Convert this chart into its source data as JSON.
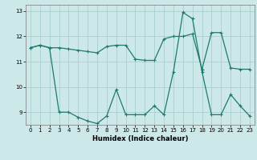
{
  "title": "",
  "xlabel": "Humidex (Indice chaleur)",
  "xlim": [
    -0.5,
    23.5
  ],
  "ylim": [
    8.5,
    13.25
  ],
  "xticks": [
    0,
    1,
    2,
    3,
    4,
    5,
    6,
    7,
    8,
    9,
    10,
    11,
    12,
    13,
    14,
    15,
    16,
    17,
    18,
    19,
    20,
    21,
    22,
    23
  ],
  "yticks": [
    9,
    10,
    11,
    12,
    13
  ],
  "bg_color": "#cce8e8",
  "line_color": "#1e7a6e",
  "grid_color": "#aacfcf",
  "line1_x": [
    0,
    1,
    2,
    3,
    4,
    5,
    6,
    7,
    8,
    9,
    10,
    11,
    12,
    13,
    14,
    15,
    16,
    17,
    18,
    19,
    20,
    21,
    22,
    23
  ],
  "line1_y": [
    11.55,
    11.65,
    11.55,
    11.55,
    11.5,
    11.45,
    11.4,
    11.35,
    11.6,
    11.65,
    11.65,
    11.1,
    11.05,
    11.05,
    11.9,
    12.0,
    12.0,
    12.1,
    10.7,
    12.15,
    12.15,
    10.75,
    10.7,
    10.7
  ],
  "line2_x": [
    0,
    1,
    2,
    3,
    4,
    5,
    6,
    7,
    8,
    9,
    10,
    11,
    12,
    13,
    14,
    15,
    16,
    17,
    18,
    19,
    20,
    21,
    22,
    23
  ],
  "line2_y": [
    11.55,
    11.65,
    11.55,
    9.0,
    9.0,
    8.8,
    8.65,
    8.55,
    8.85,
    9.9,
    8.9,
    8.9,
    8.9,
    9.25,
    8.9,
    10.6,
    12.95,
    12.7,
    10.6,
    8.9,
    8.9,
    9.7,
    9.25,
    8.85
  ]
}
